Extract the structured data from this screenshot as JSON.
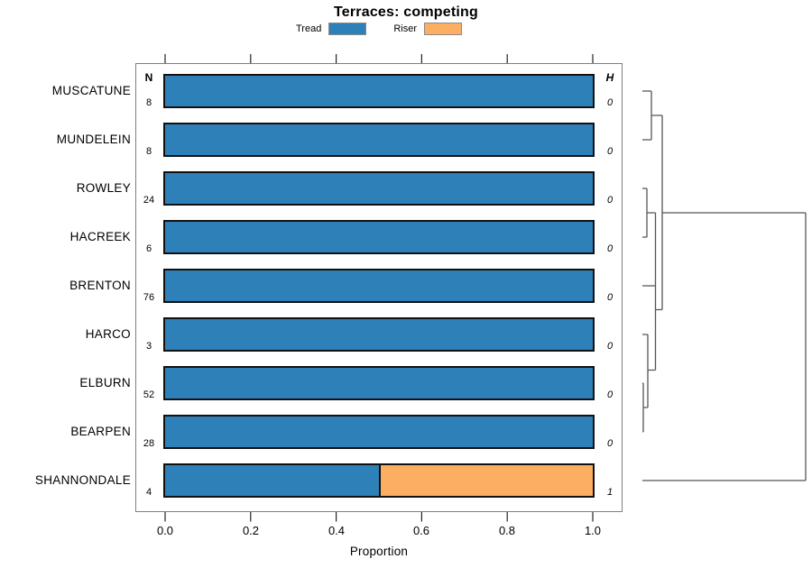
{
  "title": "Terraces: competing",
  "legend": {
    "tread_label": "Tread",
    "riser_label": "Riser"
  },
  "colors": {
    "tread": "#2e80b8",
    "riser": "#fcae63"
  },
  "table": {
    "n_header": "N",
    "h_header": "H"
  },
  "x_axis": {
    "label": "Proportion",
    "ticks": [
      "0.0",
      "0.2",
      "0.4",
      "0.6",
      "0.8",
      "1.0"
    ]
  },
  "chart_data": {
    "type": "bar",
    "orientation": "horizontal",
    "stacked": true,
    "title": "Terraces: competing",
    "xlabel": "Proportion",
    "xlim": [
      0,
      1
    ],
    "grid": false,
    "legend_position": "top",
    "categories": [
      "MUSCATUNE",
      "MUNDELEIN",
      "ROWLEY",
      "HACREEK",
      "BRENTON",
      "HARCO",
      "ELBURN",
      "BEARPEN",
      "SHANNONDALE"
    ],
    "series": [
      {
        "name": "Tread",
        "color": "#2e80b8",
        "values": [
          1.0,
          1.0,
          1.0,
          1.0,
          1.0,
          1.0,
          1.0,
          1.0,
          0.5
        ]
      },
      {
        "name": "Riser",
        "color": "#fcae63",
        "values": [
          0.0,
          0.0,
          0.0,
          0.0,
          0.0,
          0.0,
          0.0,
          0.0,
          0.5
        ]
      }
    ],
    "rows": [
      {
        "site": "MUSCATUNE",
        "n": 8,
        "h": 0,
        "tread": 1.0,
        "riser": 0.0
      },
      {
        "site": "MUNDELEIN",
        "n": 8,
        "h": 0,
        "tread": 1.0,
        "riser": 0.0
      },
      {
        "site": "ROWLEY",
        "n": 24,
        "h": 0,
        "tread": 1.0,
        "riser": 0.0
      },
      {
        "site": "HACREEK",
        "n": 6,
        "h": 0,
        "tread": 1.0,
        "riser": 0.0
      },
      {
        "site": "BRENTON",
        "n": 76,
        "h": 0,
        "tread": 1.0,
        "riser": 0.0
      },
      {
        "site": "HARCO",
        "n": 3,
        "h": 0,
        "tread": 1.0,
        "riser": 0.0
      },
      {
        "site": "ELBURN",
        "n": 52,
        "h": 0,
        "tread": 1.0,
        "riser": 0.0
      },
      {
        "site": "BEARPEN",
        "n": 28,
        "h": 0,
        "tread": 1.0,
        "riser": 0.0
      },
      {
        "site": "SHANNONDALE",
        "n": 4,
        "h": 1,
        "tread": 0.5,
        "riser": 0.5
      }
    ],
    "dendrogram": {
      "side": "right",
      "merges": [
        {
          "join": [
            "MUSCATUNE",
            "MUNDELEIN"
          ],
          "height": 0
        },
        {
          "join": [
            "ROWLEY",
            "HACREEK"
          ],
          "height": 0
        },
        {
          "join": [
            "ROWLEY+HACREEK",
            "BRENTON"
          ],
          "height": 0
        },
        {
          "join": [
            "ELBURN",
            "BEARPEN"
          ],
          "height": 0
        },
        {
          "join": [
            "HARCO",
            "ELBURN+BEARPEN"
          ],
          "height": 0
        },
        {
          "join": [
            "ROWLEY+HACREEK+BRENTON",
            "HARCO+ELBURN+BEARPEN"
          ],
          "height": 0
        },
        {
          "join": [
            "MUSCATUNE+MUNDELEIN",
            "rest-of-blue-cluster"
          ],
          "height": 0
        },
        {
          "join": [
            "all-other-sites",
            "SHANNONDALE"
          ],
          "height": 1
        }
      ]
    }
  }
}
